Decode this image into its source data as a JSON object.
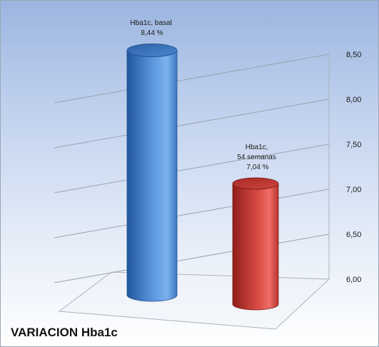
{
  "chart_data": {
    "type": "bar",
    "title": "VARIACION Hba1c",
    "categories": [
      "Hba1c, basal",
      "Hba1c, 54 semanas"
    ],
    "values": [
      8.44,
      7.04
    ],
    "data_labels": [
      [
        "Hba1c, basal",
        "8,44 %"
      ],
      [
        "Hba1c,",
        "54 semanas",
        "7,04 %"
      ]
    ],
    "ylim": [
      6.0,
      8.5
    ],
    "yticks": [
      "6,00",
      "6,50",
      "7,00",
      "7,50",
      "8,00",
      "8,50"
    ],
    "grid": true,
    "colors": [
      "#4a86cf",
      "#d2453f"
    ],
    "title_position": "bottom-left"
  }
}
